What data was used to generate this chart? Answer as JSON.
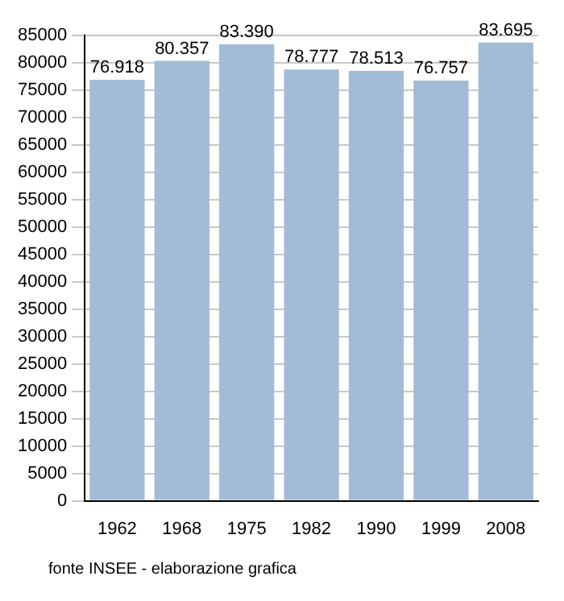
{
  "chart_data": {
    "type": "bar",
    "categories": [
      "1962",
      "1968",
      "1975",
      "1982",
      "1990",
      "1999",
      "2008"
    ],
    "values": [
      76918,
      80357,
      83390,
      78777,
      78513,
      76757,
      83695
    ],
    "value_labels": [
      "76.918",
      "80.357",
      "83.390",
      "78.777",
      "78.513",
      "76.757",
      "83.695"
    ],
    "color": "#a3bcd6",
    "ylim": [
      0,
      85000
    ],
    "yticks": [
      0,
      5000,
      10000,
      15000,
      20000,
      25000,
      30000,
      35000,
      40000,
      45000,
      50000,
      55000,
      60000,
      65000,
      70000,
      75000,
      80000,
      85000
    ],
    "grid": "y",
    "annotations": [
      "fonte INSEE - elaborazione grafica"
    ]
  }
}
